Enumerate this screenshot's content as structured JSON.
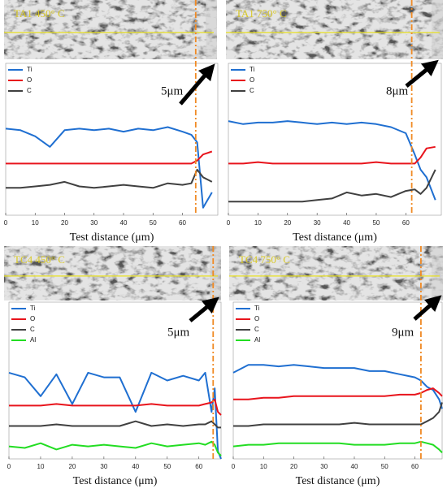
{
  "chart_data": [
    {
      "type": "line",
      "image_label": "TA1 450° C",
      "annotation": "5μm",
      "xlabel": "Test distance (μm)",
      "x": [
        0,
        5,
        10,
        15,
        20,
        25,
        30,
        35,
        40,
        45,
        50,
        55,
        60,
        63,
        65,
        67,
        70
      ],
      "xlim": [
        0,
        72
      ],
      "xticks": [
        0,
        10,
        20,
        30,
        40,
        50,
        60
      ],
      "ylim": [
        0,
        100
      ],
      "interface_x": 64.5,
      "legend": "top-left",
      "series": [
        {
          "name": "Ti",
          "color": "#1f6fd1",
          "values": [
            57,
            56,
            52,
            45,
            56,
            57,
            56,
            57,
            55,
            57,
            56,
            58,
            55,
            53,
            48,
            5,
            15
          ]
        },
        {
          "name": "O",
          "color": "#e8141c",
          "values": [
            34,
            34,
            34,
            34,
            34,
            34,
            34,
            34,
            34,
            34,
            34,
            34,
            34,
            34,
            36,
            40,
            42
          ]
        },
        {
          "name": "C",
          "color": "#404040",
          "values": [
            18,
            18,
            19,
            20,
            22,
            19,
            18,
            19,
            20,
            19,
            18,
            21,
            20,
            21,
            30,
            25,
            22
          ]
        }
      ]
    },
    {
      "type": "line",
      "image_label": "TA1 750° C",
      "annotation": "8μm",
      "xlabel": "Test distance (μm)",
      "x": [
        0,
        5,
        10,
        15,
        20,
        25,
        30,
        35,
        40,
        45,
        50,
        55,
        60,
        63,
        65,
        67,
        70
      ],
      "xlim": [
        0,
        72
      ],
      "xticks": [
        0,
        10,
        20,
        30,
        40,
        50,
        60
      ],
      "ylim": [
        0,
        100
      ],
      "interface_x": 62,
      "legend": "top-left",
      "series": [
        {
          "name": "Ti",
          "color": "#1f6fd1",
          "values": [
            62,
            60,
            61,
            61,
            62,
            61,
            60,
            61,
            60,
            61,
            60,
            58,
            54,
            40,
            30,
            25,
            10
          ]
        },
        {
          "name": "O",
          "color": "#e8141c",
          "values": [
            34,
            34,
            35,
            34,
            34,
            34,
            34,
            34,
            34,
            34,
            35,
            34,
            34,
            34,
            38,
            44,
            45
          ]
        },
        {
          "name": "C",
          "color": "#404040",
          "values": [
            9,
            9,
            9,
            9,
            9,
            9,
            10,
            11,
            15,
            13,
            14,
            12,
            16,
            17,
            14,
            18,
            30
          ]
        }
      ]
    },
    {
      "type": "line",
      "image_label": "TC4 450° C",
      "annotation": "5μm",
      "xlabel": "Test distance (μm)",
      "x": [
        0,
        5,
        10,
        15,
        20,
        25,
        30,
        35,
        40,
        45,
        50,
        55,
        60,
        62,
        64,
        65,
        66,
        67
      ],
      "xlim": [
        0,
        67
      ],
      "xticks": [
        0,
        10,
        20,
        30,
        40,
        50,
        60
      ],
      "ylim": [
        0,
        100
      ],
      "interface_x": 64.5,
      "legend": "top-left",
      "series": [
        {
          "name": "Ti",
          "color": "#1f6fd1",
          "values": [
            55,
            52,
            40,
            54,
            35,
            55,
            52,
            52,
            30,
            55,
            50,
            53,
            50,
            55,
            30,
            45,
            5,
            0
          ]
        },
        {
          "name": "O",
          "color": "#e8141c",
          "values": [
            34,
            34,
            34,
            35,
            34,
            34,
            34,
            34,
            34,
            35,
            34,
            34,
            34,
            35,
            36,
            38,
            30,
            28
          ]
        },
        {
          "name": "C",
          "color": "#404040",
          "values": [
            21,
            21,
            21,
            22,
            21,
            21,
            21,
            21,
            24,
            21,
            22,
            21,
            22,
            22,
            24,
            22,
            20,
            20
          ]
        },
        {
          "name": "Al",
          "color": "#22dd22",
          "values": [
            8,
            7,
            10,
            6,
            9,
            8,
            9,
            8,
            7,
            10,
            8,
            9,
            10,
            9,
            11,
            9,
            4,
            2
          ]
        }
      ]
    },
    {
      "type": "line",
      "image_label": "TC4 750° C",
      "annotation": "9μm",
      "xlabel": "Test distance (μm)",
      "x": [
        0,
        5,
        10,
        15,
        20,
        25,
        30,
        35,
        40,
        45,
        50,
        55,
        60,
        62,
        64,
        66,
        68,
        69
      ],
      "xlim": [
        0,
        69
      ],
      "xticks": [
        0,
        10,
        20,
        30,
        40,
        50,
        60
      ],
      "ylim": [
        0,
        100
      ],
      "interface_x": 62,
      "legend": "top-left",
      "series": [
        {
          "name": "Ti",
          "color": "#1f6fd1",
          "values": [
            55,
            60,
            60,
            59,
            60,
            59,
            58,
            58,
            58,
            56,
            56,
            54,
            52,
            50,
            46,
            44,
            38,
            32
          ]
        },
        {
          "name": "O",
          "color": "#e8141c",
          "values": [
            38,
            38,
            39,
            39,
            40,
            40,
            40,
            40,
            40,
            40,
            40,
            41,
            41,
            42,
            44,
            45,
            42,
            40
          ]
        },
        {
          "name": "C",
          "color": "#404040",
          "values": [
            21,
            21,
            22,
            22,
            22,
            22,
            22,
            22,
            23,
            22,
            22,
            22,
            22,
            22,
            24,
            26,
            30,
            36
          ]
        },
        {
          "name": "Al",
          "color": "#22dd22",
          "values": [
            8,
            9,
            9,
            10,
            10,
            10,
            10,
            10,
            9,
            9,
            9,
            10,
            10,
            11,
            10,
            9,
            6,
            4
          ]
        }
      ]
    }
  ]
}
